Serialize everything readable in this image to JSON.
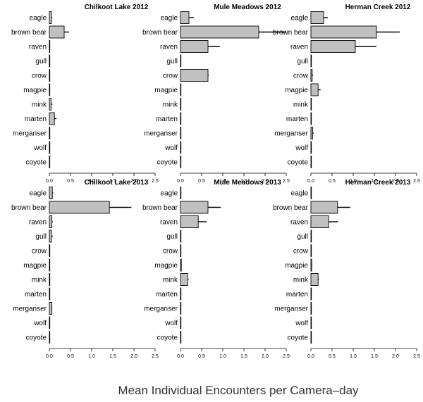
{
  "xlabel": "Mean Individual Encounters per Camera–day",
  "chart_data": [
    {
      "type": "bar",
      "orientation": "horizontal",
      "title": "Chilkoot Lake 2012",
      "categories": [
        "eagle",
        "brown bear",
        "raven",
        "gull",
        "crow",
        "magpie",
        "mink",
        "marten",
        "merganser",
        "wolf",
        "coyote"
      ],
      "values": [
        0.05,
        0.35,
        0.01,
        0,
        0,
        0,
        0.04,
        0.12,
        0,
        0.01,
        0
      ],
      "errors": [
        0.02,
        0.12,
        0.01,
        0,
        0,
        0,
        0.03,
        0.05,
        0,
        0.01,
        0
      ],
      "xlim": [
        0,
        2.5
      ],
      "xticks": [
        "0.0",
        "0.5",
        "1.0",
        "1.5",
        "2.0",
        "2.5"
      ]
    },
    {
      "type": "bar",
      "orientation": "horizontal",
      "title": "Mule Meadows 2012",
      "categories": [
        "eagle",
        "brown bear",
        "raven",
        "gull",
        "crow",
        "magpie",
        "mink",
        "marten",
        "merganser",
        "wolf",
        "coyote"
      ],
      "values": [
        0.2,
        1.85,
        0.65,
        0,
        0.65,
        0,
        0,
        0,
        0,
        0.01,
        0
      ],
      "errors": [
        0.12,
        0.65,
        0.28,
        0,
        0.02,
        0,
        0,
        0,
        0,
        0.01,
        0
      ],
      "xlim": [
        0,
        2.5
      ],
      "xticks": [
        "0.0",
        "0.5",
        "1.0",
        "1.5",
        "2.0",
        "2.5"
      ]
    },
    {
      "type": "bar",
      "orientation": "horizontal",
      "title": "Herman Creek 2012",
      "categories": [
        "eagle",
        "brown bear",
        "raven",
        "gull",
        "crow",
        "magpie",
        "mink",
        "marten",
        "merganser",
        "wolf",
        "coyote"
      ],
      "values": [
        0.3,
        1.55,
        1.05,
        0,
        0.03,
        0.17,
        0,
        0,
        0.04,
        0,
        0
      ],
      "errors": [
        0.1,
        0.55,
        0.5,
        0,
        0.02,
        0.06,
        0,
        0,
        0.03,
        0,
        0
      ],
      "xlim": [
        0,
        2.5
      ],
      "xticks": [
        "0.0",
        "0.5",
        "1.0",
        "1.5",
        "2.0",
        "2.5"
      ]
    },
    {
      "type": "bar",
      "orientation": "horizontal",
      "title": "Chilkoot Lake 2013",
      "categories": [
        "eagle",
        "brown bear",
        "raven",
        "gull",
        "crow",
        "magpie",
        "mink",
        "marten",
        "merganser",
        "wolf",
        "coyote"
      ],
      "values": [
        0.07,
        1.42,
        0.06,
        0.05,
        0,
        0,
        0.01,
        0,
        0.06,
        0,
        0
      ],
      "errors": [
        0.02,
        0.52,
        0.02,
        0.03,
        0,
        0,
        0.01,
        0,
        0.01,
        0,
        0
      ],
      "xlim": [
        0,
        2.5
      ],
      "xticks": [
        "0.0",
        "0.5",
        "1.0",
        "1.5",
        "2.0",
        "2.5"
      ]
    },
    {
      "type": "bar",
      "orientation": "horizontal",
      "title": "Mule Meadows 2013",
      "categories": [
        "eagle",
        "brown bear",
        "raven",
        "gull",
        "crow",
        "magpie",
        "mink",
        "marten",
        "merganser",
        "wolf",
        "coyote"
      ],
      "values": [
        0.01,
        0.65,
        0.42,
        0,
        0,
        0.02,
        0.17,
        0.01,
        0,
        0,
        0
      ],
      "errors": [
        0.01,
        0.3,
        0.2,
        0,
        0,
        0.01,
        0.02,
        0.01,
        0,
        0,
        0
      ],
      "xlim": [
        0,
        2.5
      ],
      "xticks": [
        "0.0",
        "0.5",
        "1.0",
        "1.5",
        "2.0",
        "2.5"
      ]
    },
    {
      "type": "bar",
      "orientation": "horizontal",
      "title": "Herman Creek 2013",
      "categories": [
        "eagle",
        "brown bear",
        "raven",
        "gull",
        "crow",
        "magpie",
        "mink",
        "marten",
        "merganser",
        "wolf",
        "coyote"
      ],
      "values": [
        0.01,
        0.63,
        0.42,
        0,
        0,
        0.02,
        0.17,
        0.01,
        0,
        0,
        0
      ],
      "errors": [
        0.01,
        0.3,
        0.22,
        0,
        0,
        0.01,
        0.02,
        0.01,
        0,
        0,
        0
      ],
      "xlim": [
        0,
        2.5
      ],
      "xticks": [
        "0.0",
        "0.5",
        "1.0",
        "1.5",
        "2.0",
        "2.5"
      ]
    }
  ],
  "colors": {
    "bar_fill": "#c0c0c0",
    "bar_stroke": "#000000",
    "axis": "#000000",
    "xlabel_text": "#333333"
  }
}
